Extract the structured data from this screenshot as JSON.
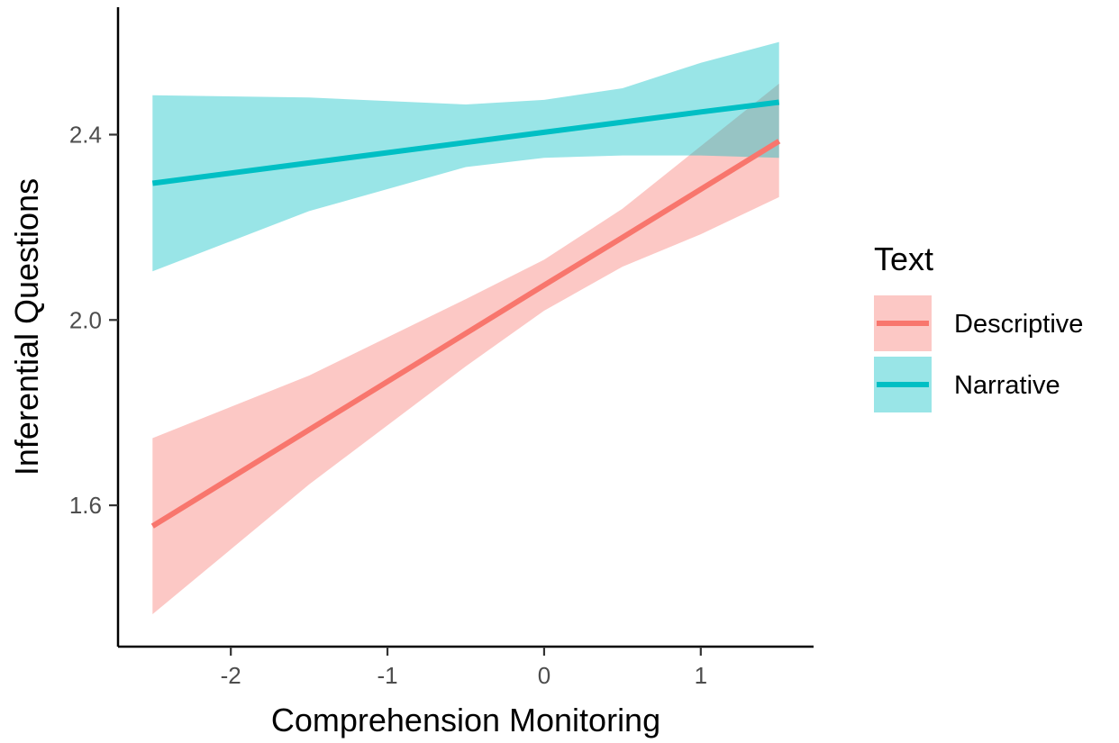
{
  "chart_data": {
    "type": "line",
    "xlabel": "Comprehension Monitoring",
    "ylabel": "Inferential Questions",
    "xlim": [
      -2.72,
      1.72
    ],
    "ylim": [
      1.295,
      2.675
    ],
    "x_ticks": [
      -2,
      -1,
      0,
      1
    ],
    "x_tick_labels": [
      "-2",
      "-1",
      "0",
      "1"
    ],
    "y_ticks": [
      1.6,
      2.0,
      2.4
    ],
    "y_tick_labels": [
      "1.6",
      "2.0",
      "2.4"
    ],
    "grid": false,
    "legend": {
      "title": "Text",
      "position": "right"
    },
    "series": [
      {
        "name": "Descriptive",
        "color": "#F8766D",
        "x": [
          -2.5,
          -1.5,
          -0.5,
          0.0,
          0.5,
          1.0,
          1.5
        ],
        "y": [
          1.555,
          1.763,
          1.971,
          2.075,
          2.178,
          2.282,
          2.386
        ],
        "lower": [
          1.365,
          1.645,
          1.9,
          2.02,
          2.115,
          2.185,
          2.265
        ],
        "upper": [
          1.745,
          1.88,
          2.045,
          2.13,
          2.24,
          2.375,
          2.51
        ]
      },
      {
        "name": "Narrative",
        "color": "#00BFC4",
        "x": [
          -2.5,
          -1.5,
          -0.5,
          0.0,
          0.5,
          1.0,
          1.5
        ],
        "y": [
          2.295,
          2.339,
          2.383,
          2.405,
          2.427,
          2.449,
          2.47
        ],
        "lower": [
          2.105,
          2.235,
          2.33,
          2.35,
          2.355,
          2.355,
          2.35
        ],
        "upper": [
          2.485,
          2.48,
          2.465,
          2.475,
          2.5,
          2.555,
          2.6
        ]
      }
    ]
  }
}
